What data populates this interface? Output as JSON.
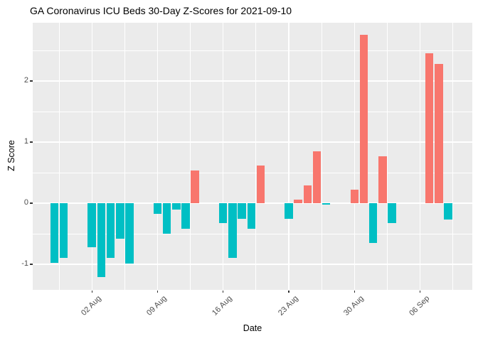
{
  "colors": {
    "positive_bar": "#F8766D",
    "negative_bar": "#00BFC4",
    "panel_background": "#EBEBEB",
    "gridline": "#FFFFFF",
    "tick_text": "#4D4D4D",
    "title_text": "#000000"
  },
  "chart_data": {
    "type": "bar",
    "title": "GA Coronavirus ICU Beds 30-Day Z-Scores for 2021-09-10",
    "xlabel": "Date",
    "ylabel": "Z Score",
    "ylim": [
      -1.42,
      2.95
    ],
    "grid": "on",
    "legend": "none",
    "positive_color": "#F8766D",
    "negative_color": "#00BFC4",
    "y_ticks": [
      {
        "label": "-1",
        "v": -1
      },
      {
        "label": "0",
        "v": 0
      },
      {
        "label": "1",
        "v": 1
      },
      {
        "label": "2",
        "v": 2
      }
    ],
    "y_minor": [
      -0.5,
      0.5,
      1.5,
      2.5
    ],
    "x_ticks": [
      {
        "label": "02 Aug",
        "day": 4
      },
      {
        "label": "09 Aug",
        "day": 11
      },
      {
        "label": "16 Aug",
        "day": 18
      },
      {
        "label": "23 Aug",
        "day": 25
      },
      {
        "label": "30 Aug",
        "day": 32
      },
      {
        "label": "06 Sep",
        "day": 39
      }
    ],
    "x_minor_days": [
      0.5,
      7.5,
      14.5,
      21.5,
      28.5,
      35.5,
      42.5
    ],
    "points": [
      {
        "date": "29 Jul",
        "day": 0,
        "z": -0.98
      },
      {
        "date": "30 Jul",
        "day": 1,
        "z": -0.9
      },
      {
        "date": "02 Aug",
        "day": 4,
        "z": -0.72
      },
      {
        "date": "03 Aug",
        "day": 5,
        "z": -1.21
      },
      {
        "date": "04 Aug",
        "day": 6,
        "z": -0.9
      },
      {
        "date": "05 Aug",
        "day": 7,
        "z": -0.58
      },
      {
        "date": "06 Aug",
        "day": 8,
        "z": -0.99
      },
      {
        "date": "09 Aug",
        "day": 11,
        "z": -0.17
      },
      {
        "date": "10 Aug",
        "day": 12,
        "z": -0.5
      },
      {
        "date": "11 Aug",
        "day": 13,
        "z": -0.1
      },
      {
        "date": "12 Aug",
        "day": 14,
        "z": -0.42
      },
      {
        "date": "13 Aug",
        "day": 15,
        "z": 0.54
      },
      {
        "date": "16 Aug",
        "day": 18,
        "z": -0.33
      },
      {
        "date": "17 Aug",
        "day": 19,
        "z": -0.89
      },
      {
        "date": "18 Aug",
        "day": 20,
        "z": -0.26
      },
      {
        "date": "19 Aug",
        "day": 21,
        "z": -0.42
      },
      {
        "date": "20 Aug",
        "day": 22,
        "z": 0.62
      },
      {
        "date": "23 Aug",
        "day": 25,
        "z": -0.26
      },
      {
        "date": "24 Aug",
        "day": 26,
        "z": 0.06
      },
      {
        "date": "25 Aug",
        "day": 27,
        "z": 0.29
      },
      {
        "date": "26 Aug",
        "day": 28,
        "z": 0.85
      },
      {
        "date": "27 Aug",
        "day": 29,
        "z": -0.02
      },
      {
        "date": "30 Aug",
        "day": 32,
        "z": 0.22
      },
      {
        "date": "31 Aug",
        "day": 33,
        "z": 2.76
      },
      {
        "date": "01 Sep",
        "day": 34,
        "z": -0.65
      },
      {
        "date": "02 Sep",
        "day": 35,
        "z": 0.77
      },
      {
        "date": "03 Sep",
        "day": 36,
        "z": -0.33
      },
      {
        "date": "07 Sep",
        "day": 40,
        "z": 2.45
      },
      {
        "date": "08 Sep",
        "day": 41,
        "z": 2.28
      },
      {
        "date": "09 Sep",
        "day": 42,
        "z": -0.27
      }
    ]
  }
}
